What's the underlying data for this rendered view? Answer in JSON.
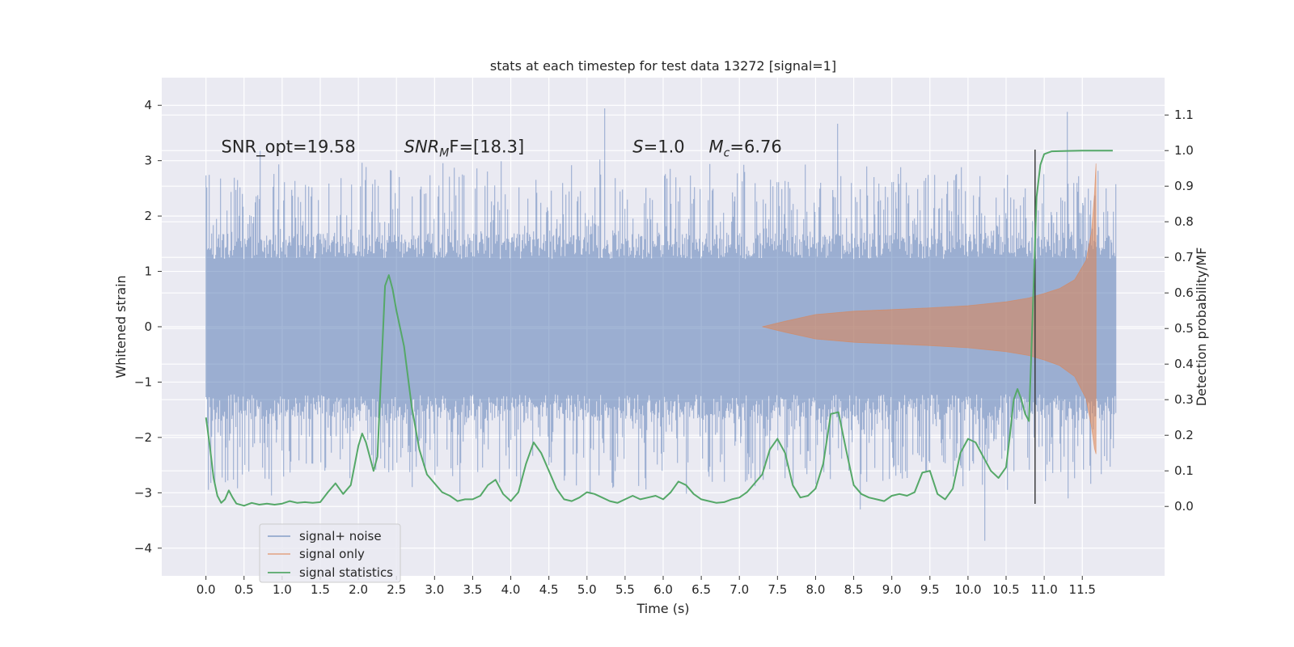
{
  "chart_data": {
    "type": "line",
    "title": "stats at each timestep for test data 13272 [signal=1]",
    "xlabel": "Time (s)",
    "ylabel_left": "Whitened strain",
    "ylabel_right": "Detection probability/MF",
    "xlim": [
      -0.58,
      12.58
    ],
    "ylim_left": [
      -4.5,
      4.5
    ],
    "ylim_right": [
      -0.195,
      1.205
    ],
    "x_ticks": [
      0.0,
      0.5,
      1.0,
      1.5,
      2.0,
      2.5,
      3.0,
      3.5,
      4.0,
      4.5,
      5.0,
      5.5,
      6.0,
      6.5,
      7.0,
      7.5,
      8.0,
      8.5,
      9.0,
      9.5,
      10.0,
      10.5,
      11.0,
      11.5
    ],
    "x_tick_labels": [
      "0.0",
      "0.5",
      "1.0",
      "1.5",
      "2.0",
      "2.5",
      "3.0",
      "3.5",
      "4.0",
      "4.5",
      "5.0",
      "5.5",
      "6.0",
      "6.5",
      "7.0",
      "7.5",
      "8.0",
      "8.5",
      "9.0",
      "9.5",
      "10.0",
      "10.5",
      "11.0",
      "11.5"
    ],
    "y_left_ticks": [
      -4,
      -3,
      -2,
      -1,
      0,
      1,
      2,
      3,
      4
    ],
    "y_left_tick_labels": [
      "−4",
      "−3",
      "−2",
      "−1",
      "0",
      "1",
      "2",
      "3",
      "4"
    ],
    "y_right_ticks": [
      0.0,
      0.1,
      0.2,
      0.3,
      0.4,
      0.5,
      0.6,
      0.7,
      0.8,
      0.9,
      1.0,
      1.1
    ],
    "y_right_tick_labels": [
      "0.0",
      "0.1",
      "0.2",
      "0.3",
      "0.4",
      "0.5",
      "0.6",
      "0.7",
      "0.8",
      "0.9",
      "1.0",
      "1.1"
    ],
    "grid": true,
    "legend_position": "lower-left",
    "series": [
      {
        "name": "signal+ noise",
        "color": "#4c72b0",
        "alpha": 0.5,
        "kind": "noise_band",
        "x_range": [
          0.0,
          11.95
        ],
        "typical_amplitude": 1.7,
        "peak_amplitude": 4.05
      },
      {
        "name": "signal only",
        "color": "#dd8452",
        "alpha": 0.55,
        "kind": "envelope",
        "envelope": {
          "x": [
            7.3,
            7.6,
            8.0,
            8.5,
            9.0,
            9.5,
            10.0,
            10.5,
            10.8,
            11.0,
            11.2,
            11.4,
            11.55,
            11.62,
            11.66,
            11.68
          ],
          "upper": [
            0.0,
            0.1,
            0.22,
            0.28,
            0.31,
            0.34,
            0.38,
            0.45,
            0.52,
            0.6,
            0.69,
            0.85,
            1.2,
            1.7,
            2.4,
            2.95
          ],
          "lower": [
            0.0,
            -0.1,
            -0.22,
            -0.28,
            -0.31,
            -0.34,
            -0.38,
            -0.45,
            -0.52,
            -0.6,
            -0.7,
            -0.9,
            -1.3,
            -1.8,
            -2.2,
            -2.3
          ]
        }
      },
      {
        "name": "signal statistics",
        "color": "#55a868",
        "axis": "right",
        "x": [
          0.0,
          0.05,
          0.1,
          0.15,
          0.2,
          0.25,
          0.3,
          0.35,
          0.4,
          0.5,
          0.6,
          0.7,
          0.8,
          0.9,
          1.0,
          1.1,
          1.2,
          1.3,
          1.4,
          1.5,
          1.6,
          1.7,
          1.8,
          1.9,
          2.0,
          2.05,
          2.1,
          2.15,
          2.2,
          2.25,
          2.3,
          2.35,
          2.4,
          2.45,
          2.5,
          2.6,
          2.7,
          2.8,
          2.9,
          3.0,
          3.1,
          3.2,
          3.3,
          3.4,
          3.5,
          3.6,
          3.7,
          3.8,
          3.9,
          4.0,
          4.1,
          4.2,
          4.3,
          4.4,
          4.5,
          4.6,
          4.7,
          4.8,
          4.9,
          5.0,
          5.1,
          5.2,
          5.3,
          5.4,
          5.5,
          5.6,
          5.7,
          5.8,
          5.9,
          6.0,
          6.1,
          6.2,
          6.3,
          6.4,
          6.5,
          6.6,
          6.7,
          6.8,
          6.9,
          7.0,
          7.1,
          7.2,
          7.3,
          7.4,
          7.5,
          7.6,
          7.7,
          7.8,
          7.9,
          8.0,
          8.1,
          8.2,
          8.3,
          8.4,
          8.5,
          8.6,
          8.7,
          8.8,
          8.9,
          9.0,
          9.1,
          9.2,
          9.3,
          9.4,
          9.5,
          9.6,
          9.7,
          9.8,
          9.9,
          10.0,
          10.1,
          10.2,
          10.3,
          10.4,
          10.5,
          10.55,
          10.6,
          10.65,
          10.7,
          10.75,
          10.8,
          10.85,
          10.9,
          10.95,
          11.0,
          11.1,
          11.3,
          11.5,
          11.7,
          11.9
        ],
        "values": [
          0.25,
          0.17,
          0.08,
          0.03,
          0.01,
          0.02,
          0.045,
          0.025,
          0.008,
          0.002,
          0.01,
          0.005,
          0.008,
          0.005,
          0.008,
          0.015,
          0.01,
          0.012,
          0.01,
          0.012,
          0.04,
          0.065,
          0.035,
          0.06,
          0.17,
          0.205,
          0.18,
          0.14,
          0.1,
          0.14,
          0.38,
          0.62,
          0.65,
          0.61,
          0.55,
          0.45,
          0.28,
          0.16,
          0.09,
          0.065,
          0.04,
          0.03,
          0.015,
          0.02,
          0.02,
          0.03,
          0.06,
          0.075,
          0.035,
          0.015,
          0.04,
          0.12,
          0.18,
          0.15,
          0.1,
          0.05,
          0.02,
          0.015,
          0.025,
          0.04,
          0.035,
          0.025,
          0.015,
          0.01,
          0.02,
          0.03,
          0.02,
          0.025,
          0.03,
          0.02,
          0.04,
          0.07,
          0.06,
          0.035,
          0.02,
          0.015,
          0.01,
          0.012,
          0.02,
          0.025,
          0.04,
          0.065,
          0.09,
          0.16,
          0.19,
          0.15,
          0.06,
          0.025,
          0.03,
          0.05,
          0.12,
          0.26,
          0.265,
          0.16,
          0.06,
          0.035,
          0.025,
          0.02,
          0.015,
          0.03,
          0.035,
          0.03,
          0.04,
          0.095,
          0.1,
          0.035,
          0.02,
          0.05,
          0.15,
          0.19,
          0.18,
          0.14,
          0.1,
          0.08,
          0.11,
          0.2,
          0.3,
          0.33,
          0.3,
          0.26,
          0.24,
          0.55,
          0.87,
          0.96,
          0.99,
          0.998,
          0.999,
          1.0,
          1.0,
          1.0
        ]
      }
    ],
    "vertical_marker": {
      "x": 10.88,
      "color": "#333333",
      "y_top_left": 3.2,
      "y_bottom_left": -3.2
    },
    "annotations": [
      {
        "text": "SNR_opt=19.58",
        "x": 0.2,
        "y": 3.25
      },
      {
        "text": "SNR_MF=[18.3]",
        "x": 2.6,
        "y": 3.25,
        "sym": "SNR",
        "sub": "M",
        "rest": "F=[18.3]"
      },
      {
        "text": "S=1.0",
        "x": 5.6,
        "y": 3.25,
        "sym": "S",
        "rest": "=1.0"
      },
      {
        "text": "Mc=6.76",
        "x": 6.6,
        "y": 3.25,
        "sym": "M",
        "sub": "c",
        "rest": "=6.76"
      }
    ]
  }
}
